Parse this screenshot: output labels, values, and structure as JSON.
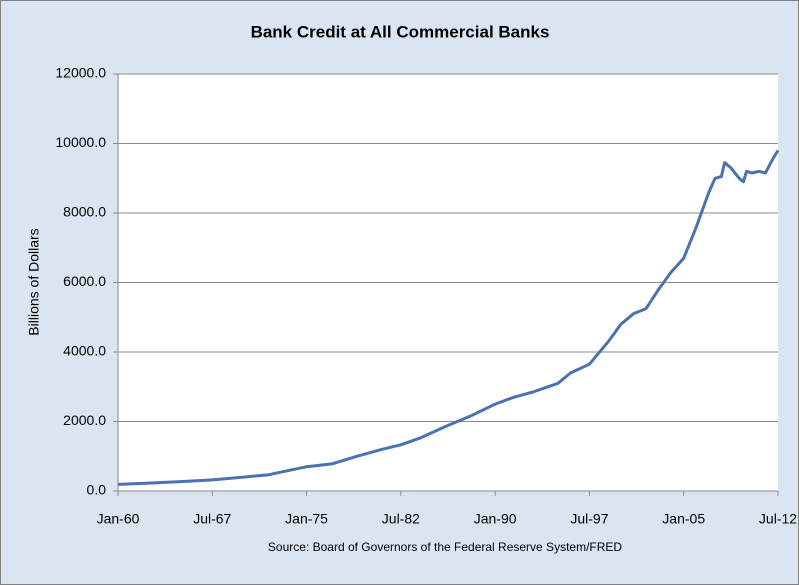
{
  "chart_data": {
    "type": "line",
    "title": "Bank Credit at All Commercial Banks",
    "y_label": "Billions of Dollars",
    "source": "Source: Board of Governors of the Federal Reserve System/FRED",
    "color": "#4a72b0",
    "x": [
      "1960-01",
      "1962-01",
      "1965-01",
      "1967-07",
      "1970-01",
      "1972-01",
      "1975-01",
      "1977-01",
      "1979-01",
      "1981-01",
      "1982-07",
      "1984-01",
      "1986-01",
      "1988-01",
      "1990-01",
      "1991-07",
      "1993-01",
      "1995-01",
      "1996-01",
      "1997-07",
      "1999-01",
      "2000-01",
      "2001-01",
      "2002-01",
      "2003-01",
      "2004-01",
      "2005-01",
      "2006-01",
      "2007-01",
      "2007-07",
      "2008-01",
      "2008-04",
      "2008-10",
      "2009-06",
      "2009-10",
      "2010-01",
      "2010-06",
      "2011-01",
      "2011-07",
      "2012-01",
      "2012-07"
    ],
    "values": [
      190,
      220,
      270,
      320,
      400,
      470,
      700,
      780,
      1000,
      1200,
      1330,
      1520,
      1850,
      2150,
      2500,
      2700,
      2850,
      3100,
      3400,
      3650,
      4300,
      4800,
      5100,
      5250,
      5800,
      6300,
      6700,
      7600,
      8600,
      9000,
      9050,
      9450,
      9300,
      9000,
      8900,
      9200,
      9150,
      9200,
      9150,
      9500,
      9800
    ],
    "xlim": [
      "1960-01",
      "2012-07"
    ],
    "xticks": [
      {
        "value": "1960-01",
        "label": "Jan-60"
      },
      {
        "value": "1967-07",
        "label": "Jul-67"
      },
      {
        "value": "1975-01",
        "label": "Jan-75"
      },
      {
        "value": "1982-07",
        "label": "Jul-82"
      },
      {
        "value": "1990-01",
        "label": "Jan-90"
      },
      {
        "value": "1997-07",
        "label": "Jul-97"
      },
      {
        "value": "2005-01",
        "label": "Jan-05"
      },
      {
        "value": "2012-07",
        "label": "Jul-12"
      }
    ],
    "ylim": [
      0,
      12000
    ],
    "yticks": [
      {
        "value": 0,
        "label": "0.0"
      },
      {
        "value": 2000,
        "label": "2000.0"
      },
      {
        "value": 4000,
        "label": "4000.0"
      },
      {
        "value": 6000,
        "label": "6000.0"
      },
      {
        "value": 8000,
        "label": "8000.0"
      },
      {
        "value": 10000,
        "label": "10000.0"
      },
      {
        "value": 12000,
        "label": "12000.0"
      }
    ],
    "grid": true
  }
}
